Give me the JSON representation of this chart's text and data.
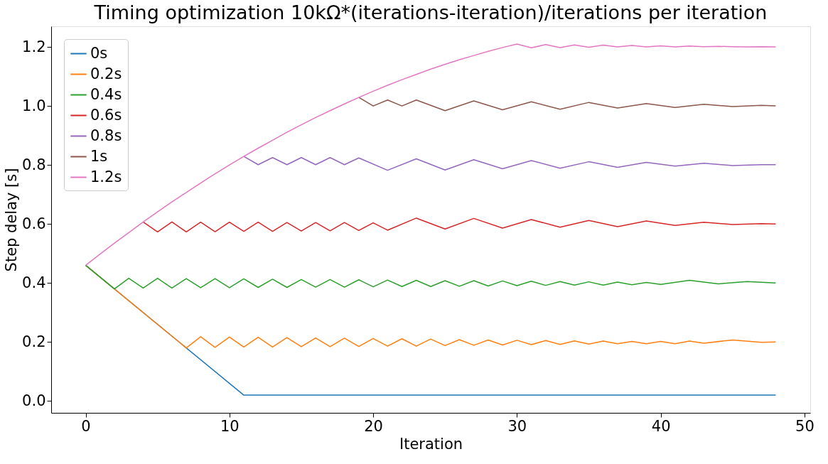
{
  "chart_data": {
    "type": "line",
    "title": "Timing optimization 10kΩ*(iterations-iteration)/iterations per iteration",
    "xlabel": "Iteration",
    "ylabel": "Step delay [s]",
    "xlim": [
      -2.4,
      50.4
    ],
    "xticks": [
      0,
      10,
      20,
      30,
      40,
      50
    ],
    "ylim": [
      -0.04,
      1.27
    ],
    "yticks": [
      {
        "value": 0,
        "label": "0.0"
      },
      0.2,
      0.4,
      0.6,
      0.8,
      {
        "value": 1,
        "label": "1.0"
      },
      1.2
    ],
    "grid": false,
    "legend": "top left",
    "marker": "none",
    "line_style": "solid",
    "series": [
      {
        "name": "0s",
        "color": "#1f77b4",
        "x": [
          0,
          11,
          48
        ],
        "values": [
          0.46,
          0.02,
          0.02
        ]
      },
      {
        "name": "0.2s",
        "color": "#ff7f0e",
        "x": [
          0,
          2,
          7,
          8,
          9,
          10,
          11,
          12,
          13,
          14,
          15,
          16,
          17,
          18,
          19,
          20,
          21,
          22,
          23,
          24,
          25,
          26,
          27,
          28,
          29,
          30,
          31,
          32,
          33,
          34,
          35,
          36,
          37,
          38,
          39,
          40,
          41,
          42,
          43,
          45,
          47,
          48
        ],
        "values": [
          0.46,
          0.38,
          0.18,
          0.218,
          0.182,
          0.217,
          0.183,
          0.216,
          0.183,
          0.215,
          0.184,
          0.214,
          0.184,
          0.213,
          0.185,
          0.212,
          0.186,
          0.211,
          0.186,
          0.21,
          0.188,
          0.208,
          0.189,
          0.207,
          0.19,
          0.206,
          0.191,
          0.205,
          0.192,
          0.204,
          0.193,
          0.203,
          0.194,
          0.202,
          0.194,
          0.202,
          0.194,
          0.203,
          0.196,
          0.207,
          0.199,
          0.2
        ]
      },
      {
        "name": "0.4s",
        "color": "#2ca02c",
        "x": [
          0,
          2,
          3,
          4,
          5,
          6,
          7,
          8,
          9,
          10,
          11,
          12,
          13,
          14,
          15,
          16,
          17,
          18,
          19,
          20,
          21,
          22,
          23,
          24,
          25,
          26,
          27,
          28,
          29,
          30,
          31,
          32,
          33,
          34,
          35,
          36,
          37,
          38,
          39,
          40,
          42,
          44,
          46,
          48
        ],
        "values": [
          0.46,
          0.38,
          0.416,
          0.383,
          0.416,
          0.383,
          0.415,
          0.384,
          0.415,
          0.384,
          0.414,
          0.385,
          0.413,
          0.385,
          0.412,
          0.386,
          0.412,
          0.386,
          0.411,
          0.387,
          0.41,
          0.388,
          0.409,
          0.388,
          0.408,
          0.389,
          0.408,
          0.39,
          0.407,
          0.391,
          0.406,
          0.392,
          0.405,
          0.393,
          0.404,
          0.393,
          0.403,
          0.394,
          0.402,
          0.395,
          0.409,
          0.397,
          0.405,
          0.4
        ]
      },
      {
        "name": "0.6s",
        "color": "#d62728",
        "x": [
          4,
          5,
          6,
          7,
          8,
          9,
          10,
          11,
          12,
          13,
          14,
          15,
          16,
          17,
          18,
          19,
          20,
          21,
          23,
          25,
          27,
          29,
          31,
          33,
          35,
          37,
          39,
          41,
          43,
          45,
          47,
          48
        ],
        "values": [
          0.607,
          0.573,
          0.607,
          0.573,
          0.606,
          0.574,
          0.606,
          0.575,
          0.606,
          0.575,
          0.605,
          0.576,
          0.605,
          0.577,
          0.605,
          0.578,
          0.604,
          0.579,
          0.62,
          0.583,
          0.619,
          0.586,
          0.615,
          0.589,
          0.612,
          0.591,
          0.61,
          0.595,
          0.606,
          0.598,
          0.601,
          0.6
        ]
      },
      {
        "name": "0.8s",
        "color": "#9467bd",
        "x": [
          11,
          12,
          13,
          14,
          15,
          16,
          17,
          18,
          19,
          21,
          23,
          25,
          27,
          29,
          31,
          33,
          35,
          37,
          39,
          41,
          43,
          45,
          47,
          48
        ],
        "values": [
          0.829,
          0.801,
          0.825,
          0.801,
          0.825,
          0.801,
          0.825,
          0.801,
          0.824,
          0.782,
          0.821,
          0.783,
          0.818,
          0.787,
          0.815,
          0.789,
          0.811,
          0.792,
          0.809,
          0.796,
          0.806,
          0.798,
          0.801,
          0.801
        ]
      },
      {
        "name": "1s",
        "color": "#8c564b",
        "x": [
          19,
          20,
          21,
          22,
          23,
          25,
          27,
          29,
          31,
          33,
          35,
          37,
          39,
          41,
          43,
          45,
          47,
          48
        ],
        "values": [
          1.029,
          1.0,
          1.02,
          1.0,
          1.02,
          0.984,
          1.017,
          0.987,
          1.014,
          0.989,
          1.012,
          0.993,
          1.008,
          0.995,
          1.006,
          0.998,
          1.002,
          1.0
        ]
      },
      {
        "name": "1.2s",
        "color": "#e377c2",
        "x": [
          0,
          1,
          2,
          3,
          4,
          5,
          6,
          7,
          8,
          9,
          10,
          11,
          12,
          13,
          14,
          15,
          16,
          17,
          18,
          19,
          20,
          21,
          22,
          23,
          24,
          25,
          26,
          27,
          28,
          29,
          30,
          31,
          32,
          33,
          34,
          35,
          36,
          37,
          38,
          39,
          40,
          41,
          42,
          43,
          44,
          45,
          46,
          47,
          48
        ],
        "values": [
          0.46,
          0.498,
          0.535,
          0.571,
          0.607,
          0.641,
          0.675,
          0.707,
          0.739,
          0.77,
          0.8,
          0.829,
          0.857,
          0.884,
          0.911,
          0.936,
          0.961,
          0.984,
          1.007,
          1.029,
          1.05,
          1.07,
          1.089,
          1.107,
          1.125,
          1.141,
          1.157,
          1.171,
          1.185,
          1.198,
          1.21,
          1.197,
          1.208,
          1.198,
          1.207,
          1.199,
          1.206,
          1.2,
          1.205,
          1.2,
          1.204,
          1.2,
          1.203,
          1.201,
          1.202,
          1.201,
          1.2,
          1.201,
          1.2
        ]
      }
    ]
  }
}
